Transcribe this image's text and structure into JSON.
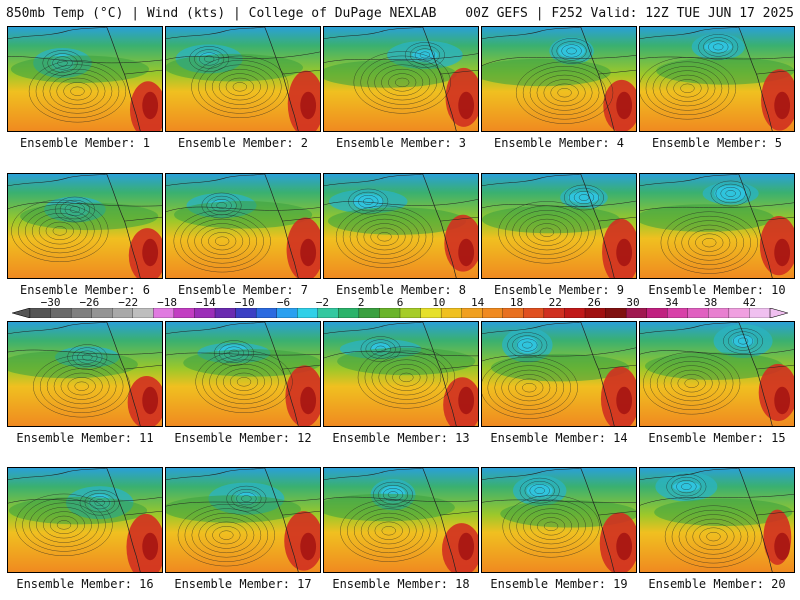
{
  "header": {
    "left": "850mb Temp (°C) | Wind (kts) | College of DuPage NEXLAB",
    "right": "00Z GEFS | F252 Valid: 12Z TUE JUN 17 2025"
  },
  "members": [
    "Ensemble Member: 1",
    "Ensemble Member: 2",
    "Ensemble Member: 3",
    "Ensemble Member: 4",
    "Ensemble Member: 5",
    "Ensemble Member: 6",
    "Ensemble Member: 7",
    "Ensemble Member: 8",
    "Ensemble Member: 9",
    "Ensemble Member: 10",
    "Ensemble Member: 11",
    "Ensemble Member: 12",
    "Ensemble Member: 13",
    "Ensemble Member: 14",
    "Ensemble Member: 15",
    "Ensemble Member: 16",
    "Ensemble Member: 17",
    "Ensemble Member: 18",
    "Ensemble Member: 19",
    "Ensemble Member: 20"
  ],
  "colorbar": {
    "ticks": [
      "−30",
      "−26",
      "−22",
      "−18",
      "−14",
      "−10",
      "−6",
      "−2",
      "2",
      "6",
      "10",
      "14",
      "18",
      "22",
      "26",
      "30",
      "34",
      "38",
      "42"
    ],
    "colors": [
      "#555555",
      "#6a6a6a",
      "#7f7f7f",
      "#949494",
      "#a9a9a9",
      "#bebebe",
      "#e07ae0",
      "#c23ec2",
      "#9b2fb8",
      "#6a2bb0",
      "#3a3fc4",
      "#2a6ae0",
      "#2aa0f0",
      "#30d0e8",
      "#33c8a0",
      "#2ab36a",
      "#3aa040",
      "#6ab42a",
      "#a6cc28",
      "#e6e02a",
      "#f0c020",
      "#f0a020",
      "#f08a20",
      "#e87020",
      "#e05020",
      "#d03020",
      "#c01818",
      "#a01010",
      "#801010",
      "#a01850",
      "#c02080",
      "#d840a8",
      "#e060c0",
      "#e880d0",
      "#f0a0e0",
      "#f0c0f0"
    ]
  }
}
